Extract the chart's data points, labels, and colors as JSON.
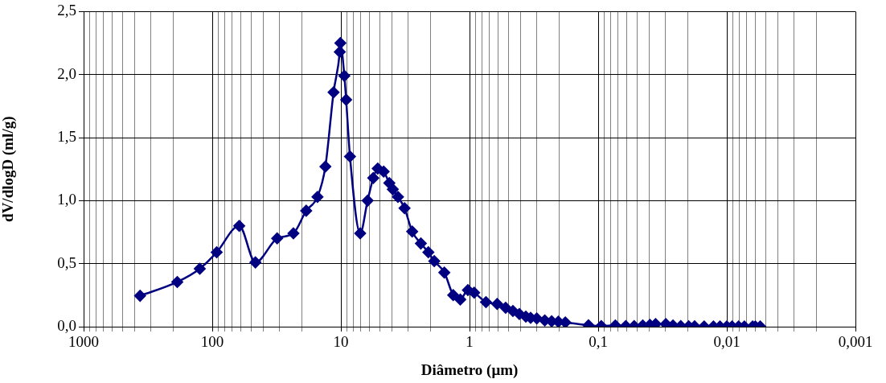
{
  "chart_data": {
    "type": "line",
    "xlabel": "Diâmetro (μm)",
    "ylabel": "dV/dlogD (ml/g)",
    "log": "x",
    "grid": true,
    "marker": "diamond",
    "line_style": "solid",
    "legend": false,
    "xlim": [
      1000,
      0.001
    ],
    "ylim": [
      0,
      2.5
    ],
    "xticks": [
      {
        "value": 1000,
        "label": "1000"
      },
      {
        "value": 900,
        "label": null
      },
      {
        "value": 800,
        "label": null
      },
      {
        "value": 700,
        "label": null
      },
      {
        "value": 600,
        "label": null
      },
      {
        "value": 500,
        "label": null
      },
      {
        "value": 400,
        "label": null
      },
      {
        "value": 300,
        "label": null
      },
      {
        "value": 200,
        "label": null
      },
      {
        "value": 100,
        "label": "100"
      },
      {
        "value": 90,
        "label": null
      },
      {
        "value": 80,
        "label": null
      },
      {
        "value": 70,
        "label": null
      },
      {
        "value": 60,
        "label": null
      },
      {
        "value": 50,
        "label": null
      },
      {
        "value": 40,
        "label": null
      },
      {
        "value": 30,
        "label": null
      },
      {
        "value": 20,
        "label": null
      },
      {
        "value": 10,
        "label": "10"
      },
      {
        "value": 9,
        "label": null
      },
      {
        "value": 8,
        "label": null
      },
      {
        "value": 7,
        "label": null
      },
      {
        "value": 6,
        "label": null
      },
      {
        "value": 5,
        "label": null
      },
      {
        "value": 4,
        "label": null
      },
      {
        "value": 3,
        "label": null
      },
      {
        "value": 2,
        "label": null
      },
      {
        "value": 1,
        "label": "1"
      },
      {
        "value": 0.9,
        "label": null
      },
      {
        "value": 0.8,
        "label": null
      },
      {
        "value": 0.7,
        "label": null
      },
      {
        "value": 0.6,
        "label": null
      },
      {
        "value": 0.5,
        "label": null
      },
      {
        "value": 0.4,
        "label": null
      },
      {
        "value": 0.3,
        "label": null
      },
      {
        "value": 0.2,
        "label": null
      },
      {
        "value": 0.1,
        "label": "0,1"
      },
      {
        "value": 0.09,
        "label": null
      },
      {
        "value": 0.08,
        "label": null
      },
      {
        "value": 0.07,
        "label": null
      },
      {
        "value": 0.06,
        "label": null
      },
      {
        "value": 0.05,
        "label": null
      },
      {
        "value": 0.04,
        "label": null
      },
      {
        "value": 0.03,
        "label": null
      },
      {
        "value": 0.02,
        "label": null
      },
      {
        "value": 0.01,
        "label": "0,01"
      },
      {
        "value": 0.009,
        "label": null
      },
      {
        "value": 0.008,
        "label": null
      },
      {
        "value": 0.007,
        "label": null
      },
      {
        "value": 0.006,
        "label": null
      },
      {
        "value": 0.005,
        "label": null
      },
      {
        "value": 0.004,
        "label": null
      },
      {
        "value": 0.003,
        "label": null
      },
      {
        "value": 0.002,
        "label": null
      },
      {
        "value": 0.001,
        "label": "0,001"
      }
    ],
    "yticks": [
      {
        "value": 0,
        "label": "0,0"
      },
      {
        "value": 0.5,
        "label": "0,5"
      },
      {
        "value": 1,
        "label": "1,0"
      },
      {
        "value": 1.5,
        "label": "1,5"
      },
      {
        "value": 2,
        "label": "2,0"
      },
      {
        "value": 2.5,
        "label": "2,5"
      }
    ],
    "series": [
      {
        "color": "#000080",
        "x": [
          364,
          187,
          125,
          92.4,
          61.7,
          46.2,
          31.3,
          23.4,
          18.6,
          15.2,
          13.2,
          11.4,
          10.2,
          10.1,
          9.4,
          9.1,
          8.5,
          7.08,
          6.2,
          5.6,
          5.17,
          4.65,
          4.2,
          3.95,
          3.6,
          3.2,
          2.79,
          2.39,
          2.09,
          1.88,
          1.57,
          1.34,
          1.18,
          1.03,
          0.92,
          0.745,
          0.61,
          0.524,
          0.46,
          0.41,
          0.365,
          0.335,
          0.3,
          0.26,
          0.23,
          0.204,
          0.18,
          0.119,
          0.0946,
          0.0735,
          0.061,
          0.0525,
          0.045,
          0.0396,
          0.0358,
          0.0298,
          0.0262,
          0.0228,
          0.0198,
          0.0178,
          0.015,
          0.0127,
          0.0113,
          0.01,
          0.0091,
          0.0081,
          0.0073,
          0.0063,
          0.006,
          0.0055
        ],
        "values": [
          0.245,
          0.355,
          0.46,
          0.59,
          0.8,
          0.51,
          0.7,
          0.74,
          0.92,
          1.03,
          1.27,
          1.86,
          2.18,
          2.25,
          1.99,
          1.8,
          1.35,
          0.74,
          1.0,
          1.18,
          1.255,
          1.23,
          1.14,
          1.09,
          1.03,
          0.94,
          0.755,
          0.66,
          0.59,
          0.52,
          0.43,
          0.25,
          0.215,
          0.29,
          0.27,
          0.195,
          0.18,
          0.15,
          0.125,
          0.1,
          0.08,
          0.07,
          0.065,
          0.05,
          0.043,
          0.039,
          0.034,
          0.011,
          0.005,
          0.01,
          0.005,
          0.005,
          0.01,
          0.015,
          0.02,
          0.02,
          0.01,
          0.005,
          0.003,
          0.003,
          0.002,
          0.002,
          0.002,
          0.002,
          0.002,
          0.002,
          0.002,
          0.002,
          0.002,
          0.002
        ]
      }
    ]
  }
}
